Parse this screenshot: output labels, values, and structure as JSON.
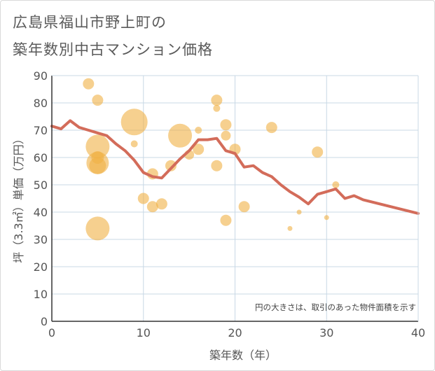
{
  "title_line1": "広島県福山市野上町の",
  "title_line2": "築年数別中古マンション価格",
  "chart_data": {
    "type": "scatter",
    "xlabel": "築年数（年）",
    "ylabel": "坪（3.3㎡）単価（万円）",
    "xlim": [
      0,
      40
    ],
    "ylim": [
      0,
      90
    ],
    "xticks": [
      0,
      10,
      20,
      30,
      40
    ],
    "yticks": [
      0,
      10,
      20,
      30,
      40,
      50,
      60,
      70,
      80,
      90
    ],
    "grid": true,
    "note": "円の大きさは、取引のあった物件面積を示す",
    "bubble_color": "#f0b044",
    "line_color": "#d36c5a",
    "bubbles": [
      {
        "x": 4,
        "y": 87,
        "r": 8
      },
      {
        "x": 5,
        "y": 81,
        "r": 8
      },
      {
        "x": 5,
        "y": 64,
        "r": 17
      },
      {
        "x": 5,
        "y": 60,
        "r": 9
      },
      {
        "x": 5,
        "y": 58,
        "r": 16
      },
      {
        "x": 5,
        "y": 57,
        "r": 12
      },
      {
        "x": 5,
        "y": 34,
        "r": 17
      },
      {
        "x": 9,
        "y": 73,
        "r": 19
      },
      {
        "x": 9,
        "y": 65,
        "r": 5
      },
      {
        "x": 10,
        "y": 45,
        "r": 8
      },
      {
        "x": 11,
        "y": 54,
        "r": 8
      },
      {
        "x": 11,
        "y": 42,
        "r": 8
      },
      {
        "x": 12,
        "y": 43,
        "r": 8
      },
      {
        "x": 13,
        "y": 57,
        "r": 8
      },
      {
        "x": 14,
        "y": 68,
        "r": 17
      },
      {
        "x": 15,
        "y": 61,
        "r": 7
      },
      {
        "x": 16,
        "y": 70,
        "r": 5
      },
      {
        "x": 16,
        "y": 63,
        "r": 8
      },
      {
        "x": 18,
        "y": 81,
        "r": 8
      },
      {
        "x": 18,
        "y": 78,
        "r": 5
      },
      {
        "x": 18,
        "y": 57,
        "r": 8
      },
      {
        "x": 19,
        "y": 72,
        "r": 8
      },
      {
        "x": 19,
        "y": 68,
        "r": 7
      },
      {
        "x": 19,
        "y": 37,
        "r": 8
      },
      {
        "x": 20,
        "y": 63,
        "r": 8
      },
      {
        "x": 21,
        "y": 42,
        "r": 8
      },
      {
        "x": 24,
        "y": 71,
        "r": 8
      },
      {
        "x": 26,
        "y": 34,
        "r": 3.5
      },
      {
        "x": 27,
        "y": 40,
        "r": 3.5
      },
      {
        "x": 29,
        "y": 62,
        "r": 8
      },
      {
        "x": 30,
        "y": 38,
        "r": 3.5
      },
      {
        "x": 31,
        "y": 50,
        "r": 5
      }
    ],
    "trend": {
      "x": [
        0,
        1,
        2,
        3,
        4,
        5,
        6,
        7,
        8,
        9,
        10,
        11,
        12,
        13,
        14,
        15,
        16,
        17,
        18,
        19,
        20,
        21,
        22,
        23,
        24,
        25,
        26,
        27,
        28,
        29,
        30,
        31,
        32,
        33,
        34,
        40
      ],
      "y": [
        71.5,
        70.5,
        73.5,
        71,
        70,
        69,
        68,
        65,
        62.5,
        59,
        54.5,
        53,
        52.5,
        56,
        59.5,
        62.5,
        66.5,
        66.5,
        67,
        62.5,
        61.5,
        56.5,
        57,
        54.5,
        53,
        50,
        47.5,
        45.5,
        43,
        46.5,
        47.5,
        48.5,
        45,
        46,
        44.5,
        39.5
      ]
    }
  }
}
